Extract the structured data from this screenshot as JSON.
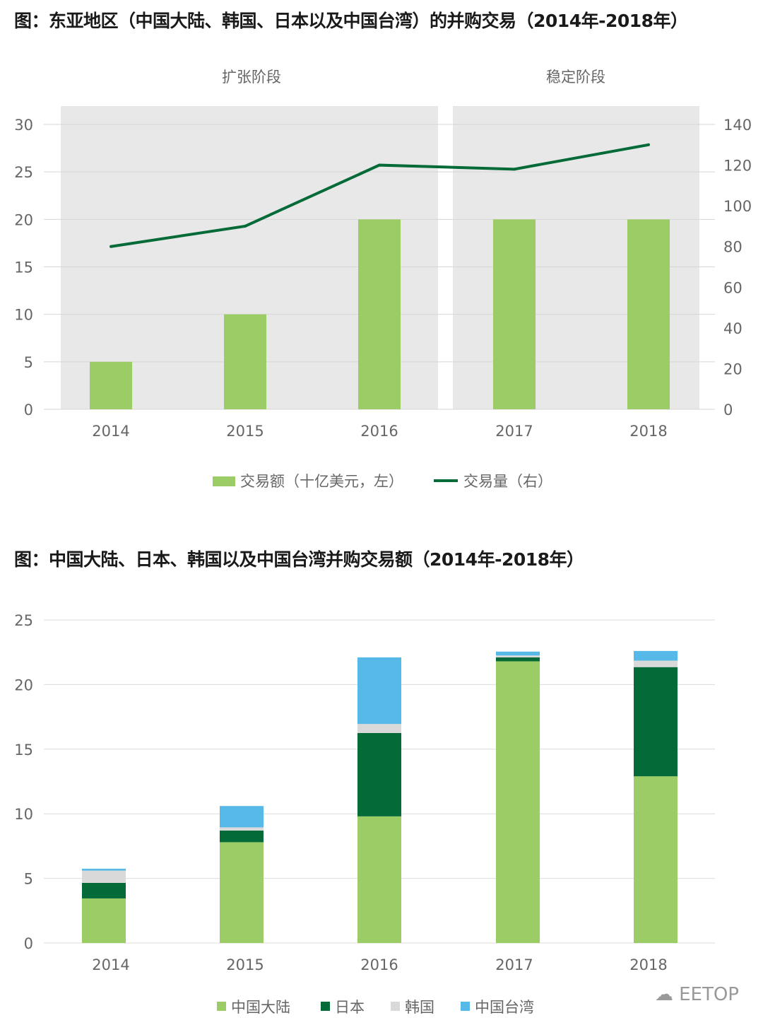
{
  "chart_data": [
    {
      "type": "bar+line",
      "title": "图：东亚地区（中国大陆、韩国、日本以及中国台湾）的并购交易（2014年-2018年）",
      "phases": [
        {
          "label": "扩张阶段",
          "categories": [
            "2014",
            "2015",
            "2016"
          ]
        },
        {
          "label": "稳定阶段",
          "categories": [
            "2017",
            "2018"
          ]
        }
      ],
      "categories": [
        "2014",
        "2015",
        "2016",
        "2017",
        "2018"
      ],
      "series": [
        {
          "name": "交易额（十亿美元，左）",
          "type": "bar",
          "axis": "left",
          "color": "#9ccc65",
          "values": [
            5,
            10,
            20,
            20,
            20
          ]
        },
        {
          "name": "交易量（右）",
          "type": "line",
          "axis": "right",
          "color": "#046a38",
          "values": [
            80,
            90,
            120,
            118,
            130
          ]
        }
      ],
      "ylim_left": [
        0,
        30
      ],
      "yticks_left": [
        0,
        5,
        10,
        15,
        20,
        25,
        30
      ],
      "ylim_right": [
        0,
        140
      ],
      "yticks_right": [
        0,
        20,
        40,
        60,
        80,
        100,
        120,
        140
      ],
      "legend": "bottom",
      "grid": true
    },
    {
      "type": "stacked-bar",
      "title": "图：中国大陆、日本、韩国以及中国台湾并购交易额（2014年-2018年）",
      "categories": [
        "2014",
        "2015",
        "2016",
        "2017",
        "2018"
      ],
      "series": [
        {
          "name": "中国大陆",
          "color": "#9ccc65",
          "values": [
            3.45,
            7.8,
            9.8,
            21.8,
            12.9
          ]
        },
        {
          "name": "日本",
          "color": "#046a38",
          "values": [
            1.2,
            0.9,
            6.45,
            0.3,
            8.45
          ]
        },
        {
          "name": "韩国",
          "color": "#d9d9d9",
          "values": [
            0.95,
            0.25,
            0.7,
            0.15,
            0.5
          ]
        },
        {
          "name": "中国台湾",
          "color": "#56b9e8",
          "values": [
            0.15,
            1.65,
            5.15,
            0.3,
            0.75
          ]
        }
      ],
      "ylim": [
        0,
        25
      ],
      "yticks": [
        0,
        5,
        10,
        15,
        20,
        25
      ],
      "legend": "bottom",
      "grid": true
    }
  ],
  "watermark": "EETOP"
}
